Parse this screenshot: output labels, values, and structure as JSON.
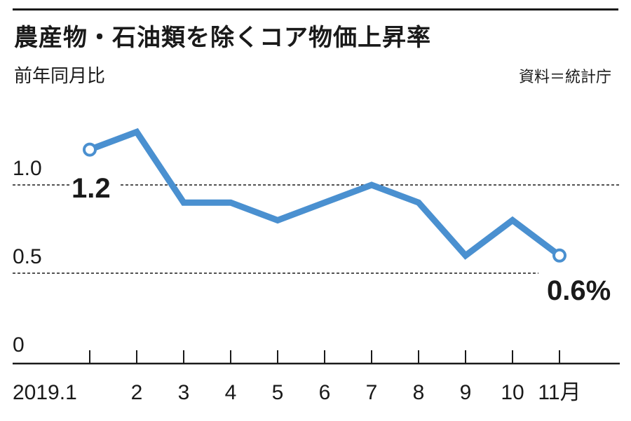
{
  "header": {
    "title": "農産物・石油類を除くコア物価上昇率",
    "subtitle": "前年同月比",
    "source": "資料＝統計庁"
  },
  "chart_data": {
    "type": "line",
    "title": "農産物・石油類を除くコア物価上昇率",
    "subtitle": "前年同月比",
    "categories": [
      "2019.1",
      "2",
      "3",
      "4",
      "5",
      "6",
      "7",
      "8",
      "9",
      "10",
      "11月"
    ],
    "values": [
      1.2,
      1.3,
      0.9,
      0.9,
      0.8,
      0.9,
      1.0,
      0.9,
      0.6,
      0.8,
      0.6
    ],
    "yticks": [
      "0",
      "0.5",
      "1.0"
    ],
    "ylim": [
      0,
      1.4
    ],
    "reference_lines": [
      1.0,
      0.5
    ],
    "annotations": [
      {
        "index": 0,
        "text": "1.2"
      },
      {
        "index": 10,
        "text": "0.6%"
      }
    ],
    "colors": {
      "line": "#4a90d0",
      "axis": "#1a1a1a"
    }
  }
}
